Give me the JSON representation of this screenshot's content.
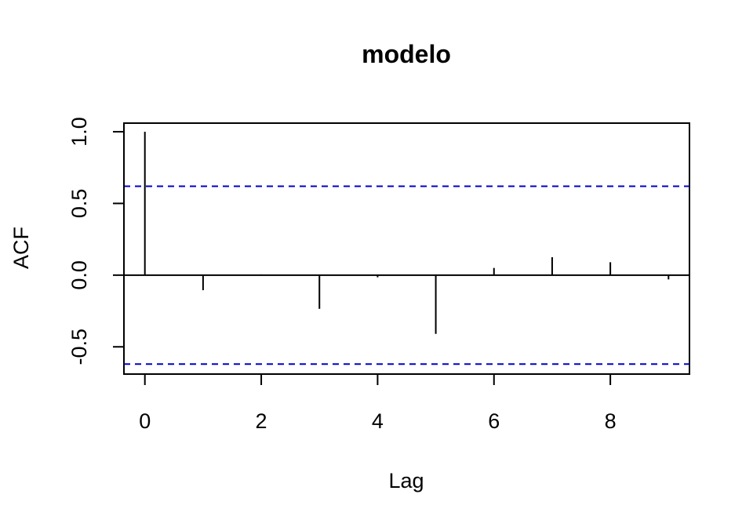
{
  "chart_data": {
    "type": "bar",
    "subtype": "acf-correlogram",
    "title": "modelo",
    "xlabel": "Lag",
    "ylabel": "ACF",
    "xlim": [
      -0.36,
      9.36
    ],
    "ylim": [
      -0.69,
      1.06
    ],
    "x_ticks": [
      0,
      2,
      4,
      6,
      8
    ],
    "y_ticks": [
      -0.5,
      0.0,
      0.5,
      1.0
    ],
    "x_tick_labels": [
      "0",
      "2",
      "4",
      "6",
      "8"
    ],
    "y_tick_labels": [
      "-0.5",
      "0.0",
      "0.5",
      "1.0"
    ],
    "lags": [
      0,
      1,
      2,
      3,
      4,
      5,
      6,
      7,
      8,
      9
    ],
    "values": [
      1.0,
      -0.105,
      0.005,
      -0.235,
      -0.015,
      -0.41,
      0.05,
      0.125,
      0.09,
      -0.03
    ],
    "confidence_bounds": [
      0.62,
      -0.62
    ],
    "confidence_color": "#0000cc",
    "bar_color": "#000000"
  }
}
